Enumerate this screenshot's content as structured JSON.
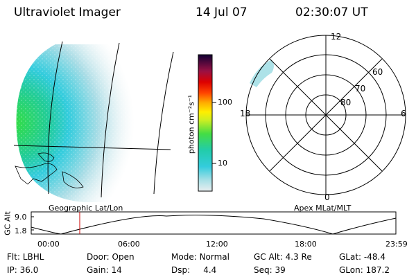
{
  "header": {
    "instrument": "Ultraviolet Imager",
    "date": "14 Jul 07",
    "time": "02:30:07 UT"
  },
  "colorbar": {
    "unit_label": "photon cm⁻²s⁻¹",
    "ticks": [
      "100",
      "10"
    ]
  },
  "polar": {
    "hour_labels": {
      "top": "12",
      "left": "18",
      "right": "6",
      "bottom": "0"
    },
    "lat_labels": [
      "60",
      "70",
      "80"
    ]
  },
  "timeline": {
    "y_axis_label": "GC Alt",
    "y_ticks": [
      "9.0",
      "1.8"
    ],
    "left_title": "Geographic Lat/Lon",
    "right_title": "Apex MLat/MLT",
    "x_ticks": [
      "00:00",
      "06:00",
      "12:00",
      "18:00",
      "23:59"
    ],
    "marker_time": "02:30"
  },
  "info": {
    "row1": [
      {
        "label": "Flt:",
        "value": "LBHL"
      },
      {
        "label": "Door:",
        "value": "Open"
      },
      {
        "label": "Mode:",
        "value": "Normal"
      },
      {
        "label": "GC Alt:",
        "value": "4.3 Re"
      },
      {
        "label": "GLat:",
        "value": "-48.4"
      }
    ],
    "row2": [
      {
        "label": "IP:",
        "value": "36.0"
      },
      {
        "label": "Gain:",
        "value": "14"
      },
      {
        "label": "Dsp:",
        "value": "4.4"
      },
      {
        "label": "Seq:",
        "value": "39"
      },
      {
        "label": "GLon:",
        "value": "187.2"
      }
    ]
  },
  "colors": {
    "marker": "#cc0000",
    "glow_bright": "#33dd44",
    "glow_mid": "#22ccbb"
  }
}
